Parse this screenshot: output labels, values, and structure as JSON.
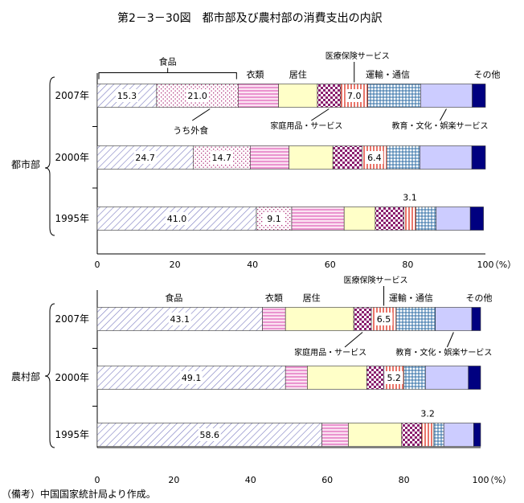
{
  "page": {
    "title": "第2－3－30図　都市部及び農村部の消費支出の内訳",
    "footnote": "（備考）中国国家統計局より作成。"
  },
  "chart_data": [
    {
      "type": "bar",
      "orientation": "horizontal",
      "stacked": true,
      "panel_label": "都市部",
      "x_axis": {
        "min": 0,
        "max": 100,
        "ticks": [
          0,
          20,
          40,
          60,
          80,
          100
        ],
        "unit": "（%）"
      },
      "categories": [
        "2007年",
        "2000年",
        "1995年"
      ],
      "series": [
        {
          "key": "food",
          "label": "食品",
          "values": [
            36.3,
            39.4,
            50.1
          ]
        },
        {
          "key": "clothing",
          "label": "衣類",
          "values": [
            10.4,
            10.0,
            13.5
          ]
        },
        {
          "key": "housing",
          "label": "居住",
          "values": [
            10.0,
            11.3,
            8.0
          ]
        },
        {
          "key": "household",
          "label": "家庭用品・サービス",
          "values": [
            6.0,
            7.5,
            7.4
          ]
        },
        {
          "key": "medical",
          "label": "医療保険サービス",
          "values": [
            7.0,
            6.4,
            3.1
          ]
        },
        {
          "key": "transport",
          "label": "運輸・通信",
          "values": [
            13.6,
            8.5,
            5.2
          ]
        },
        {
          "key": "education",
          "label": "教育・文化・娯楽サービス",
          "values": [
            13.3,
            13.4,
            8.8
          ]
        },
        {
          "key": "other",
          "label": "その他",
          "values": [
            3.4,
            3.5,
            3.4
          ]
        }
      ],
      "food_split": {
        "inner_label": "うち外食",
        "values": [
          [
            15.3,
            21.0
          ],
          [
            24.7,
            14.7
          ],
          [
            41.0,
            9.1
          ]
        ]
      },
      "data_labels": {
        "food": [
          [
            "15.3",
            "21.0"
          ],
          [
            "24.7",
            "14.7"
          ],
          [
            "41.0",
            "9.1"
          ]
        ],
        "medical": [
          "7.0",
          "6.4",
          "3.1"
        ]
      },
      "top_labels": {
        "food": "食品",
        "clothing": "衣類",
        "housing": "居住",
        "medical": "医療保険サービス",
        "transport": "運輸・通信",
        "other": "その他",
        "household": "家庭用品・サービス",
        "education": "教育・文化・娯楽サービス",
        "dining_out": "うち外食"
      }
    },
    {
      "type": "bar",
      "orientation": "horizontal",
      "stacked": true,
      "panel_label": "農村部",
      "x_axis": {
        "min": 0,
        "max": 100,
        "ticks": [
          0,
          20,
          40,
          60,
          80,
          100
        ],
        "unit": "（%）"
      },
      "categories": [
        "2007年",
        "2000年",
        "1995年"
      ],
      "series": [
        {
          "key": "food",
          "label": "食品",
          "values": [
            43.1,
            49.1,
            58.6
          ]
        },
        {
          "key": "clothing",
          "label": "衣類",
          "values": [
            6.0,
            5.7,
            6.9
          ]
        },
        {
          "key": "housing",
          "label": "居住",
          "values": [
            17.8,
            15.5,
            13.9
          ]
        },
        {
          "key": "household",
          "label": "家庭用品・サービス",
          "values": [
            4.6,
            4.5,
            5.2
          ]
        },
        {
          "key": "medical",
          "label": "医療保険サービス",
          "values": [
            6.5,
            5.2,
            3.2
          ]
        },
        {
          "key": "transport",
          "label": "運輸・通信",
          "values": [
            10.2,
            5.6,
            2.6
          ]
        },
        {
          "key": "education",
          "label": "教育・文化・娯楽サービス",
          "values": [
            9.5,
            11.2,
            7.8
          ]
        },
        {
          "key": "other",
          "label": "その他",
          "values": [
            2.3,
            3.2,
            1.8
          ]
        }
      ],
      "data_labels": {
        "food": [
          "43.1",
          "49.1",
          "58.6"
        ],
        "medical": [
          "6.5",
          "5.2",
          "3.2"
        ]
      },
      "top_labels": {
        "food": "食品",
        "clothing": "衣類",
        "housing": "居住",
        "medical": "医療保険サービス",
        "transport": "運輸・通信",
        "other": "その他",
        "household": "家庭用品・サービス",
        "education": "教育・文化・娯楽サービス"
      }
    }
  ]
}
